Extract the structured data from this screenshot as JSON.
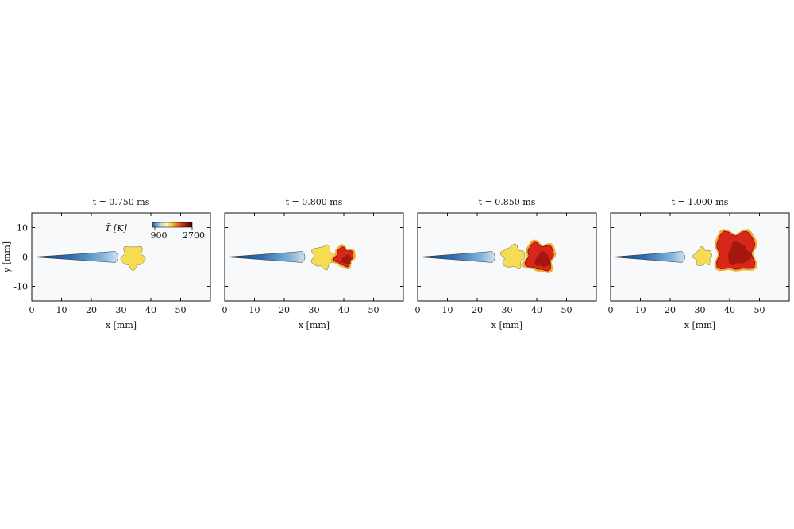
{
  "chart_data": [
    {
      "type": "heatmap",
      "title": "t = 0.750 ms",
      "xlabel": "x [mm]",
      "ylabel": "y [mm]",
      "xlim": [
        0,
        60
      ],
      "ylim": [
        -15,
        15
      ],
      "x_ticks": [
        0,
        10,
        20,
        30,
        40,
        50
      ],
      "y_ticks": [
        10,
        0,
        -10
      ],
      "colorbar": {
        "label": "T̃ [K]",
        "min": 900,
        "max": 2700,
        "min_label": "900",
        "max_label": "2700"
      }
    },
    {
      "type": "heatmap",
      "title": "t = 0.800 ms",
      "xlabel": "x [mm]",
      "xlim": [
        0,
        60
      ],
      "ylim": [
        -15,
        15
      ],
      "x_ticks": [
        0,
        10,
        20,
        30,
        40,
        50
      ]
    },
    {
      "type": "heatmap",
      "title": "t = 0.850 ms",
      "xlabel": "x [mm]",
      "xlim": [
        0,
        60
      ],
      "ylim": [
        -15,
        15
      ],
      "x_ticks": [
        0,
        10,
        20,
        30,
        40,
        50
      ]
    },
    {
      "type": "heatmap",
      "title": "t = 1.000 ms",
      "xlabel": "x [mm]",
      "xlim": [
        0,
        60
      ],
      "ylim": [
        -15,
        15
      ],
      "x_ticks": [
        0,
        10,
        20,
        30,
        40,
        50
      ]
    }
  ],
  "colors": {
    "cold": "#1f5f9e",
    "mid_cold": "#8fb9dc",
    "ambient": "#f7f9fb",
    "warm": "#f6dc50",
    "hot": "#d8261a",
    "hottest": "#7a0a08"
  }
}
